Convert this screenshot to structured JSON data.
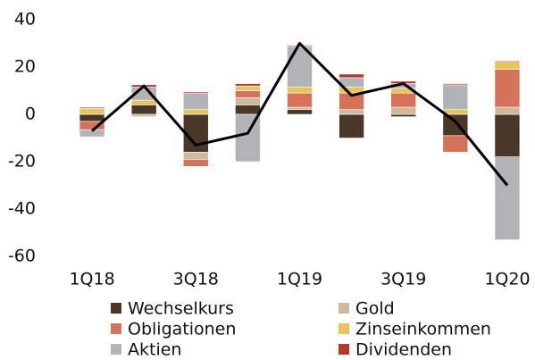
{
  "chart_data": {
    "type": "bar",
    "stacked": true,
    "categories": [
      "1Q18",
      null,
      "3Q18",
      null,
      "1Q19",
      null,
      "3Q19",
      null,
      "1Q20"
    ],
    "series": [
      {
        "name": "Wechselkurs",
        "color": "#4a3728",
        "values": [
          -3,
          4,
          -16,
          4,
          2,
          -10,
          -1,
          -9,
          -18
        ]
      },
      {
        "name": "Gold",
        "color": "#cdb99b",
        "values": [
          0,
          -1,
          -3,
          3,
          1,
          2,
          3,
          0,
          3
        ]
      },
      {
        "name": "Obligationen",
        "color": "#d4735a",
        "values": [
          -3.5,
          0,
          -3,
          3,
          6,
          7,
          6,
          -7,
          16
        ]
      },
      {
        "name": "Zinseinkommen",
        "color": "#e8c45a",
        "values": [
          2.5,
          2,
          2,
          2,
          2.5,
          2.5,
          2,
          2,
          3
        ]
      },
      {
        "name": "Aktien",
        "color": "#b1b3b6",
        "values": [
          -3,
          5.5,
          7,
          -20,
          17,
          4,
          2,
          10.5,
          -35
        ]
      },
      {
        "name": "Dividenden",
        "color": "#b23a2a",
        "values": [
          0.5,
          1,
          0.5,
          1,
          0.5,
          1.5,
          1,
          0.5,
          0.5
        ]
      }
    ],
    "line": {
      "color": "#000000",
      "values": [
        -7,
        12,
        -13,
        -8,
        30,
        8,
        13,
        -3,
        -30
      ]
    },
    "ylim": [
      -60,
      40
    ],
    "yticks": [
      -60,
      -40,
      -20,
      0,
      20,
      40
    ],
    "grid": false
  }
}
